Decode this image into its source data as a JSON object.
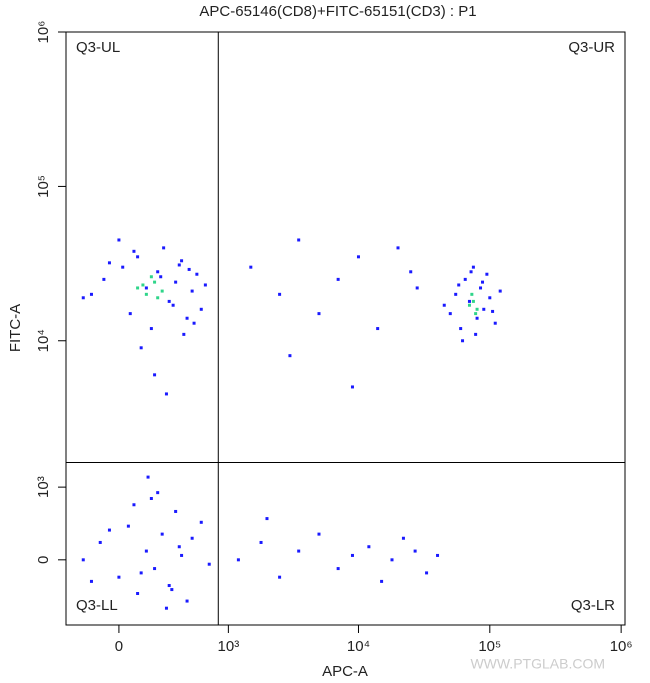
{
  "chart_data": {
    "type": "scatter",
    "title": "APC-65146(CD8)+FITC-65151(CD3) : P1",
    "x_label": "APC-A",
    "y_label": "FITC-A",
    "scale": "biexponential",
    "xlim": [
      -320,
      1070000
    ],
    "ylim": [
      -865,
      1000000
    ],
    "xticks": [
      0,
      {
        "value": 1000,
        "label": "10³"
      },
      {
        "value": 10000,
        "label": "10⁴"
      },
      {
        "value": 100000,
        "label": "10⁵"
      },
      {
        "value": 1000000,
        "label": "10⁶"
      }
    ],
    "yticks": [
      0,
      {
        "value": 1000,
        "label": "10³"
      },
      {
        "value": 10000,
        "label": "10⁴"
      },
      {
        "value": 100000,
        "label": "10⁵"
      },
      {
        "value": 1000000,
        "label": "10⁶"
      }
    ],
    "gate": {
      "x": 830,
      "y": 1540
    },
    "quadrants": {
      "ul": "Q3-UL",
      "ur": "Q3-UR",
      "ll": "Q3-LL",
      "lr": "Q3-LR"
    },
    "watermark": "WWW.PTGLAB.COM",
    "series": [
      {
        "color": "#1a1aff",
        "x": [
          -150,
          -80,
          20,
          60,
          100,
          150,
          180,
          220,
          260,
          300,
          350,
          400,
          450,
          500,
          550,
          600,
          -200,
          0,
          120,
          240,
          380,
          520,
          650,
          80,
          200,
          330,
          470,
          -50,
          280,
          420,
          50000,
          55000,
          60000,
          65000,
          70000,
          75000,
          80000,
          85000,
          90000,
          95000,
          100000,
          110000,
          120000,
          45000,
          62000,
          78000,
          88000,
          72000,
          58000,
          105000,
          -200,
          -100,
          0,
          50,
          100,
          150,
          200,
          250,
          300,
          350,
          400,
          450,
          500,
          -150,
          80,
          180,
          280,
          380,
          -50,
          120,
          220,
          320,
          600,
          700,
          160,
          1500,
          2500,
          3500,
          5000,
          7000,
          10000,
          14000,
          20000,
          28000,
          3000,
          9000,
          25000,
          1200,
          1800,
          2500,
          3500,
          5000,
          7000,
          9000,
          12000,
          15000,
          18000,
          22000,
          27000,
          33000,
          40000,
          2000
        ],
        "y": [
          20000,
          25000,
          30000,
          15000,
          35000,
          22000,
          12000,
          28000,
          40000,
          18000,
          24000,
          33000,
          14000,
          21000,
          27000,
          16000,
          19000,
          45000,
          9000,
          26000,
          31000,
          13000,
          23000,
          38000,
          6000,
          17000,
          29000,
          32000,
          4500,
          11000,
          15000,
          20000,
          12000,
          25000,
          18000,
          30000,
          14000,
          22000,
          16000,
          27000,
          19000,
          13000,
          21000,
          17000,
          10000,
          11000,
          24000,
          28000,
          23000,
          15500,
          0,
          200,
          -200,
          400,
          -400,
          100,
          -100,
          300,
          -300,
          600,
          50,
          -500,
          250,
          -250,
          700,
          800,
          -600,
          150,
          350,
          -150,
          900,
          -350,
          450,
          -50,
          1200,
          30000,
          20000,
          45000,
          15000,
          25000,
          35000,
          12000,
          40000,
          22000,
          8000,
          5000,
          28000,
          0,
          200,
          -200,
          100,
          300,
          -100,
          50,
          150,
          -250,
          0,
          250,
          100,
          -150,
          50,
          500
        ]
      },
      {
        "color": "#2fd58a",
        "x": [
          100,
          150,
          200,
          250,
          180,
          220,
          130,
          70000,
          75000,
          80000,
          73000,
          78000
        ],
        "y": [
          22000,
          20000,
          24000,
          21000,
          26000,
          19000,
          23000,
          17000,
          18000,
          16000,
          20000,
          15000
        ]
      }
    ]
  }
}
